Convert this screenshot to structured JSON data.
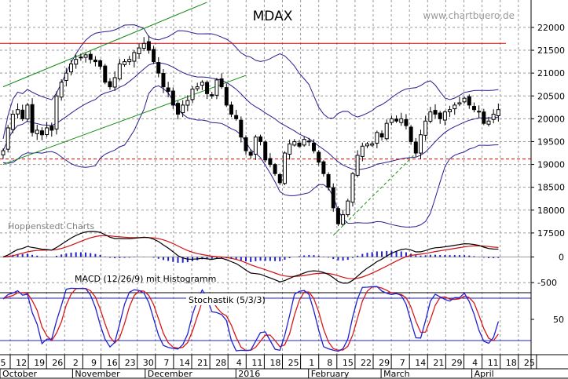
{
  "watermark": "www.chartbuero.de",
  "credit": "Hoppenstedt Charts",
  "colors": {
    "background": "#ffffff",
    "candle": "#000000",
    "bollinger": "#2a1e8c",
    "resistance": "#e00000",
    "trend": "#138a13",
    "macd_line": "#000000",
    "signal_line": "#d01010",
    "histogram": "#2020cc",
    "stoch_k": "#2020d0",
    "stoch_d": "#d81818",
    "stoch_band": "#2020d0",
    "grid": "#9a9a9a",
    "axis_text": "#000000",
    "watermark": "#9a9a9a",
    "credit": "#808080"
  },
  "chart_data": [
    {
      "type": "candlestick",
      "title": "MDAX",
      "ylim": [
        17000,
        22600
      ],
      "yticks": [
        17500,
        18000,
        18500,
        19000,
        19500,
        20000,
        20500,
        21000,
        21500,
        22000
      ],
      "ytick_labels": [
        "17500",
        "18000",
        "18500",
        "19000",
        "19500",
        "20000",
        "20500",
        "21000",
        "21500",
        "22000"
      ],
      "resistance": 21650,
      "support": 19120,
      "close": [
        19300,
        19800,
        20100,
        20200,
        20000,
        20300,
        19700,
        19750,
        19650,
        19800,
        19750,
        20500,
        20800,
        21000,
        21200,
        21300,
        21350,
        21400,
        21300,
        21250,
        21150,
        20800,
        20700,
        20900,
        21200,
        21250,
        21300,
        21450,
        21550,
        21650,
        21500,
        21250,
        21000,
        20700,
        20600,
        20300,
        20100,
        20300,
        20400,
        20650,
        20700,
        20800,
        20550,
        20500,
        20850,
        20700,
        20300,
        20100,
        20000,
        19600,
        19300,
        19200,
        19600,
        19500,
        19100,
        19000,
        18800,
        18600,
        19250,
        19450,
        19500,
        19400,
        19550,
        19500,
        19300,
        19050,
        18800,
        18500,
        18050,
        17700,
        17900,
        18200,
        18800,
        19200,
        19400,
        19450,
        19450,
        19700,
        19600,
        19900,
        20000,
        19950,
        20000,
        19850,
        19500,
        19250,
        19650,
        19950,
        20150,
        20100,
        20000,
        20150,
        20200,
        20300,
        20350,
        20450,
        20300,
        20200,
        20150,
        19900,
        19950,
        20100,
        20200
      ]
    },
    {
      "type": "line",
      "title": "MACD (12/26/9) mit Histogramm",
      "ylim": [
        -680,
        420
      ],
      "yticks": [
        0,
        -500
      ],
      "ytick_labels": [
        "0",
        "-500"
      ]
    },
    {
      "type": "line",
      "title": "Stochastik (5/3/3)",
      "ylim": [
        0,
        100
      ],
      "bands": [
        80,
        20
      ],
      "yticks": [
        50
      ],
      "ytick_labels": [
        "50"
      ]
    }
  ],
  "xaxis": {
    "day_labels": [
      "5",
      "12",
      "19",
      "26",
      "2",
      "9",
      "16",
      "23",
      "30",
      "7",
      "14",
      "21",
      "28",
      "4",
      "11",
      "18",
      "25",
      "1",
      "8",
      "15",
      "22",
      "29",
      "7",
      "14",
      "21",
      "29",
      "4",
      "11",
      "18",
      "25"
    ],
    "month_labels": [
      {
        "label": "October",
        "day_index": 0
      },
      {
        "label": "November",
        "day_index": 4
      },
      {
        "label": "December",
        "day_index": 8
      },
      {
        "label": "2016",
        "day_index": 13
      },
      {
        "label": "February",
        "day_index": 17
      },
      {
        "label": "March",
        "day_index": 21
      },
      {
        "label": "April",
        "day_index": 26
      }
    ]
  }
}
